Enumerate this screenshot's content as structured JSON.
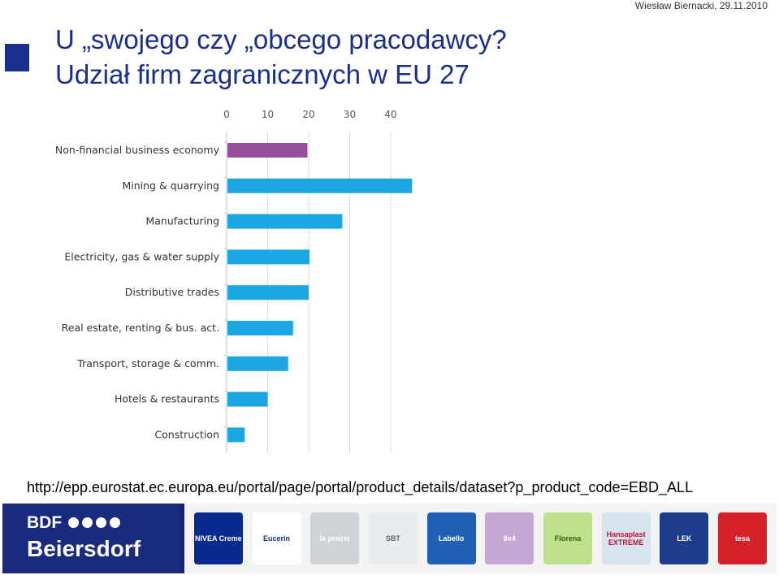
{
  "header": {
    "author_date": "Wiesław Biernacki, 29.11.2010",
    "title_line1": "U „swojego czy „obcego pracodawcy?",
    "title_line2": "Udział firm zagranicznych w EU 27"
  },
  "source_url": "http://epp.eurostat.ec.europa.eu/portal/page/portal/product_details/dataset?p_product_code=EBD_ALL",
  "chart_data": {
    "type": "bar",
    "orientation": "horizontal",
    "categories": [
      "Non-financial business economy",
      "Mining & quarrying",
      "Manufacturing",
      "Electricity, gas & water supply",
      "Distributive trades",
      "Real estate, renting & bus. act.",
      "Transport, storage & comm.",
      "Hotels & restaurants",
      "Construction"
    ],
    "values": [
      19.5,
      45,
      28,
      20,
      19.8,
      16,
      14.8,
      9.8,
      4.2
    ],
    "xticks": [
      0,
      10,
      20,
      30,
      40
    ],
    "xlim": [
      0,
      45
    ],
    "axis_position": "top",
    "grid": true,
    "colors": {
      "highlight": "#954f9b",
      "bars": "#1aa7e2",
      "grid": "#d9d9d9"
    },
    "highlight_index": 0
  },
  "footer": {
    "brand_top": "BDF",
    "brand_name": "Beiersdorf",
    "products": [
      {
        "name": "NIVEA Creme",
        "bg": "#0b2a8f",
        "fg": "#ffffff"
      },
      {
        "name": "Eucerin",
        "bg": "#ffffff",
        "fg": "#1b2f6e"
      },
      {
        "name": "la prairie",
        "bg": "#cfd3d8",
        "fg": "#ffffff"
      },
      {
        "name": "SBT",
        "bg": "#e8ecef",
        "fg": "#5c6670"
      },
      {
        "name": "Labello",
        "bg": "#1f5fb4",
        "fg": "#ffffff"
      },
      {
        "name": "8x4",
        "bg": "#c6a7d4",
        "fg": "#ffffff"
      },
      {
        "name": "Florena",
        "bg": "#bfe08a",
        "fg": "#2f5d1a"
      },
      {
        "name": "Hansaplast EXTREME",
        "bg": "#d8e3f0",
        "fg": "#c8102e"
      },
      {
        "name": "LEK",
        "bg": "#1d3c8c",
        "fg": "#ffffff"
      },
      {
        "name": "tesa",
        "bg": "#d6202a",
        "fg": "#ffffff"
      }
    ]
  }
}
